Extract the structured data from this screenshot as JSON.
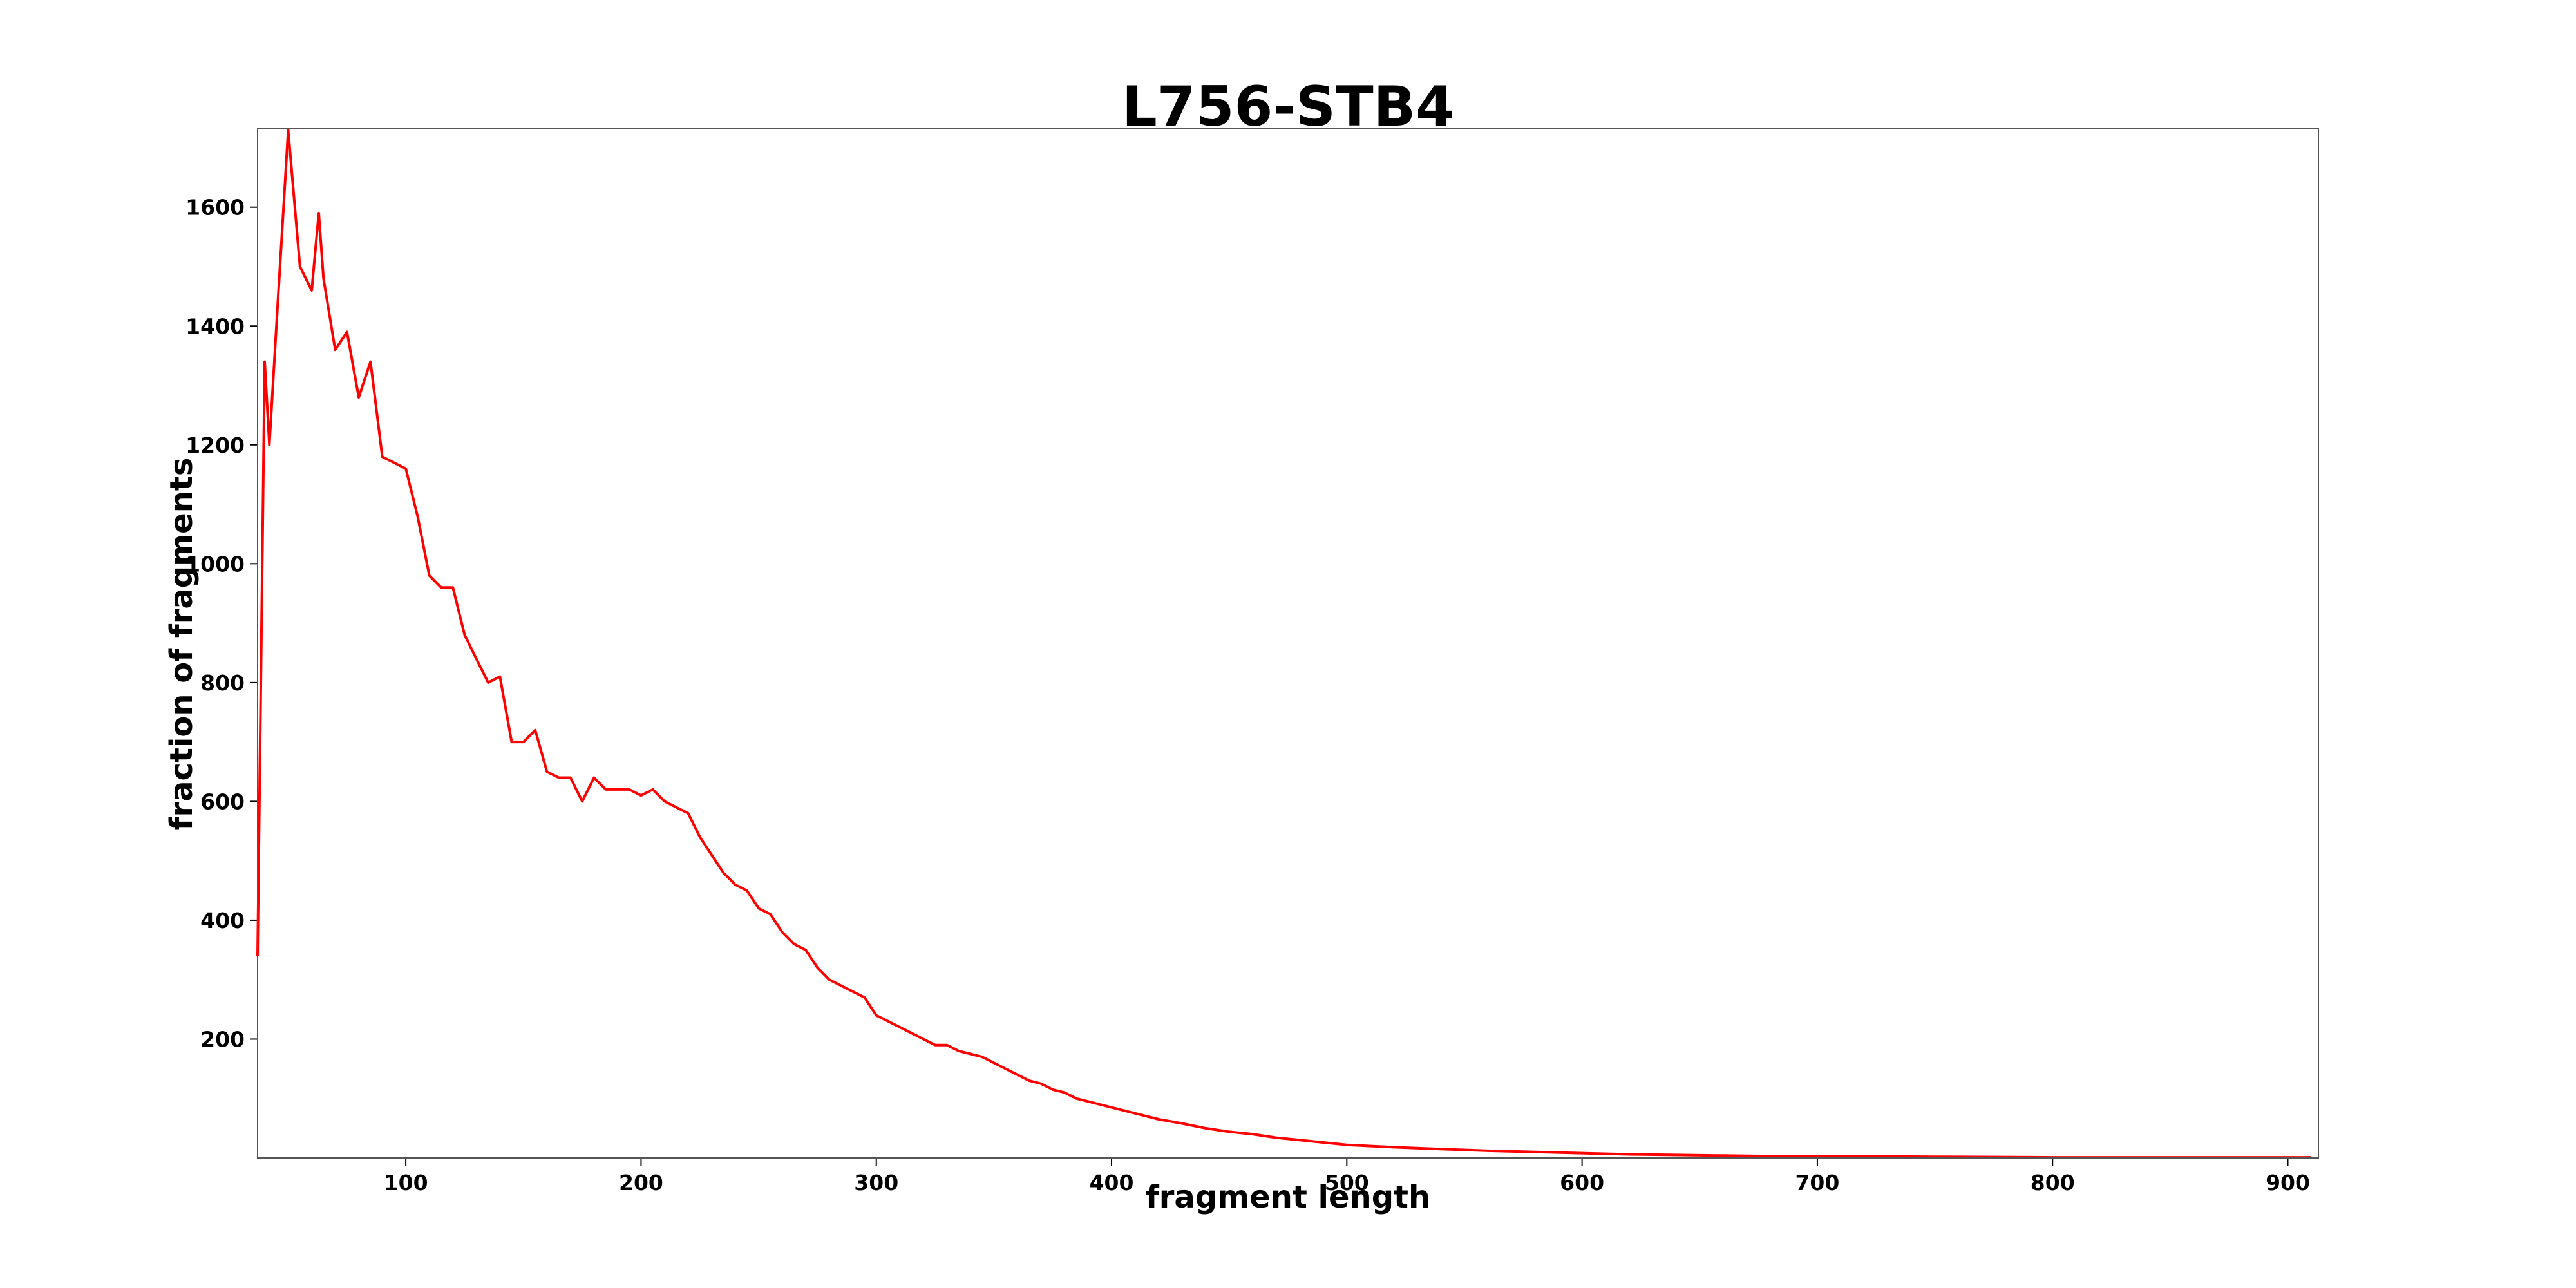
{
  "chart_data": {
    "type": "line",
    "title": "L756-STB4",
    "xlabel": "fragment length",
    "ylabel": "fraction of fragments",
    "x": [
      37,
      40,
      42,
      45,
      50,
      55,
      60,
      63,
      65,
      70,
      75,
      80,
      85,
      90,
      95,
      100,
      105,
      110,
      115,
      120,
      125,
      130,
      135,
      140,
      145,
      150,
      155,
      160,
      165,
      170,
      175,
      180,
      185,
      190,
      195,
      200,
      205,
      210,
      215,
      220,
      225,
      230,
      235,
      240,
      245,
      250,
      255,
      260,
      265,
      270,
      275,
      280,
      285,
      290,
      295,
      300,
      305,
      310,
      315,
      320,
      325,
      330,
      335,
      340,
      345,
      350,
      355,
      360,
      365,
      370,
      375,
      380,
      385,
      390,
      395,
      400,
      410,
      420,
      430,
      440,
      450,
      460,
      470,
      480,
      490,
      500,
      520,
      540,
      560,
      580,
      600,
      620,
      640,
      660,
      680,
      700,
      750,
      800,
      850,
      910
    ],
    "series": [
      {
        "name": "L756-STB4",
        "color": "#ff0000",
        "values": [
          340,
          1340,
          1200,
          1400,
          1730,
          1500,
          1460,
          1590,
          1480,
          1360,
          1390,
          1280,
          1340,
          1180,
          1170,
          1160,
          1080,
          980,
          960,
          960,
          880,
          840,
          800,
          810,
          700,
          700,
          720,
          650,
          640,
          640,
          600,
          640,
          620,
          620,
          620,
          610,
          620,
          600,
          590,
          580,
          540,
          510,
          480,
          460,
          450,
          420,
          410,
          380,
          360,
          350,
          320,
          300,
          290,
          280,
          270,
          240,
          230,
          220,
          210,
          200,
          190,
          190,
          180,
          175,
          170,
          160,
          150,
          140,
          130,
          125,
          115,
          110,
          100,
          95,
          90,
          85,
          75,
          65,
          58,
          50,
          44,
          40,
          34,
          30,
          26,
          22,
          18,
          15,
          12,
          10,
          8,
          6,
          5,
          4,
          3,
          3,
          2,
          1,
          1,
          1
        ]
      }
    ],
    "xlim": [
      37,
      913
    ],
    "ylim": [
      0,
      1733
    ],
    "xticks": [
      100,
      200,
      300,
      400,
      500,
      600,
      700,
      800,
      900
    ],
    "yticks": [
      200,
      400,
      600,
      800,
      1000,
      1200,
      1400,
      1600
    ]
  }
}
